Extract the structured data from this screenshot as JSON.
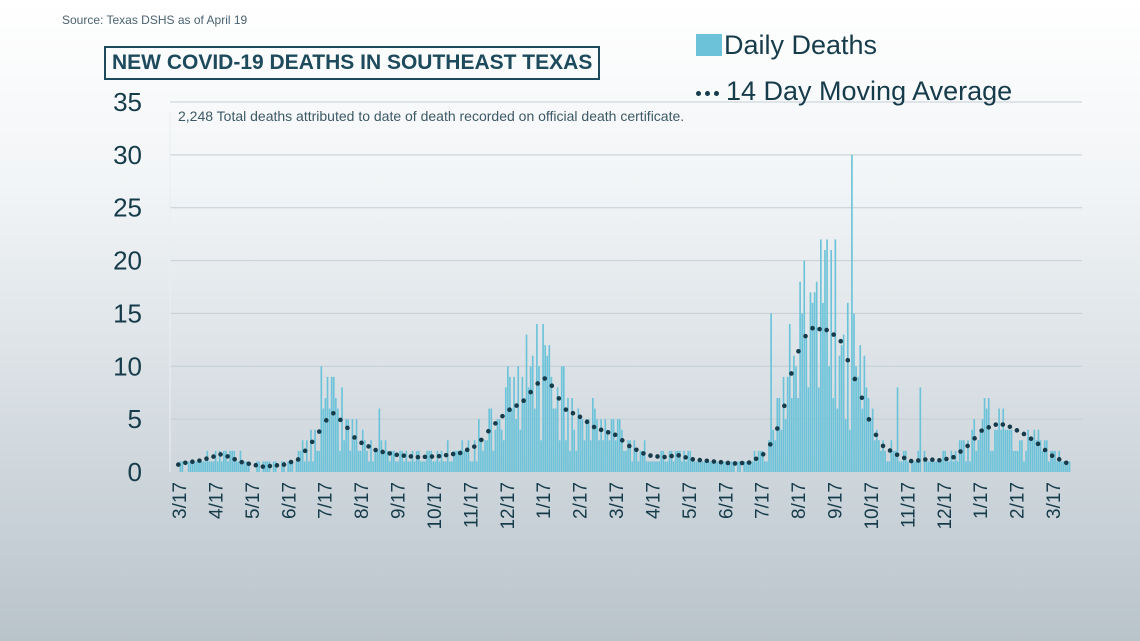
{
  "header": {
    "source": "Source: Texas DSHS as of April 19",
    "title": "NEW COVID-19 DEATHS IN SOUTHEAST TEXAS",
    "subtitle": "2,248 Total deaths attributed to date of death recorded on official death certificate."
  },
  "legend": {
    "bars_label": "Daily Deaths",
    "line_label": "14 Day Moving Average"
  },
  "colors": {
    "bars": "#6cc3d9",
    "line": "#163b4a",
    "axis_text": "#163b4a",
    "grid": "#c4ced4"
  },
  "chart_data": {
    "type": "bar",
    "x_start": "3/17",
    "day_count": 400,
    "x_ticks": [
      "3/17",
      "4/17",
      "5/17",
      "6/17",
      "7/17",
      "8/17",
      "9/17",
      "10/17",
      "11/17",
      "12/17",
      "1/17",
      "2/17",
      "3/17",
      "4/17",
      "5/17",
      "6/17",
      "7/17",
      "8/17",
      "9/17",
      "10/17",
      "11/17",
      "12/17",
      "1/17",
      "2/17",
      "3/17"
    ],
    "y_ticks": [
      0,
      5,
      10,
      15,
      20,
      25,
      30,
      35
    ],
    "ylim": [
      0,
      35
    ],
    "grid": true,
    "legend_position": "top-right",
    "moving_average_keypoints": [
      [
        0,
        0.3
      ],
      [
        5,
        0.8
      ],
      [
        15,
        1.1
      ],
      [
        25,
        1.7
      ],
      [
        35,
        0.9
      ],
      [
        45,
        0.5
      ],
      [
        55,
        0.7
      ],
      [
        62,
        1.2
      ],
      [
        70,
        3.2
      ],
      [
        78,
        5.7
      ],
      [
        84,
        4.6
      ],
      [
        90,
        3.0
      ],
      [
        100,
        2.0
      ],
      [
        110,
        1.6
      ],
      [
        120,
        1.4
      ],
      [
        130,
        1.5
      ],
      [
        140,
        1.8
      ],
      [
        148,
        2.5
      ],
      [
        155,
        4.2
      ],
      [
        163,
        5.8
      ],
      [
        170,
        6.6
      ],
      [
        175,
        7.8
      ],
      [
        180,
        9.0
      ],
      [
        185,
        8.0
      ],
      [
        190,
        6.0
      ],
      [
        198,
        5.2
      ],
      [
        205,
        4.2
      ],
      [
        215,
        3.5
      ],
      [
        222,
        2.4
      ],
      [
        230,
        1.6
      ],
      [
        238,
        1.4
      ],
      [
        245,
        1.6
      ],
      [
        252,
        1.2
      ],
      [
        262,
        1.0
      ],
      [
        272,
        0.8
      ],
      [
        280,
        0.9
      ],
      [
        288,
        1.9
      ],
      [
        295,
        5.0
      ],
      [
        300,
        9.5
      ],
      [
        305,
        12.5
      ],
      [
        310,
        13.6
      ],
      [
        318,
        13.4
      ],
      [
        324,
        12.3
      ],
      [
        328,
        10.0
      ],
      [
        333,
        7.5
      ],
      [
        338,
        4.5
      ],
      [
        343,
        2.6
      ],
      [
        350,
        1.7
      ],
      [
        358,
        1.0
      ],
      [
        365,
        1.2
      ],
      [
        372,
        1.1
      ],
      [
        378,
        1.4
      ],
      [
        385,
        2.5
      ],
      [
        392,
        4.0
      ],
      [
        400,
        4.6
      ],
      [
        405,
        4.3
      ],
      [
        412,
        3.6
      ],
      [
        418,
        2.8
      ],
      [
        425,
        1.6
      ],
      [
        432,
        0.9
      ],
      [
        440,
        0.3
      ]
    ],
    "daily_deaths_notable": [
      {
        "day": 290,
        "value": 15
      },
      {
        "day": 304,
        "value": 18
      },
      {
        "day": 311,
        "value": 17
      },
      {
        "day": 319,
        "value": 21
      },
      {
        "day": 329,
        "value": 30
      },
      {
        "day": 330,
        "value": 15
      },
      {
        "day": 177,
        "value": 14
      },
      {
        "day": 172,
        "value": 13
      },
      {
        "day": 190,
        "value": 10
      },
      {
        "day": 73,
        "value": 10
      },
      {
        "day": 76,
        "value": 9
      },
      {
        "day": 101,
        "value": 6
      },
      {
        "day": 351,
        "value": 8
      },
      {
        "day": 362,
        "value": 8
      },
      {
        "day": 403,
        "value": 11
      },
      {
        "day": 417,
        "value": 13
      }
    ]
  }
}
